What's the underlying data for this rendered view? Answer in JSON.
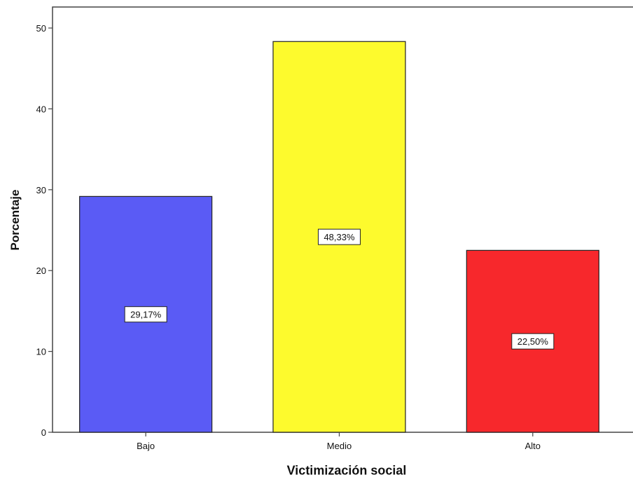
{
  "chart_data": {
    "type": "bar",
    "categories": [
      "Bajo",
      "Medio",
      "Alto"
    ],
    "values": [
      29.17,
      48.33,
      22.5
    ],
    "data_labels": [
      "29,17%",
      "48,33%",
      "22,50%"
    ],
    "colors": [
      "#5a5bf5",
      "#fdfa2d",
      "#f7282c"
    ],
    "xlabel": "Victimización social",
    "ylabel": "Porcentaje",
    "ylim": [
      0,
      50
    ],
    "yticks": [
      0,
      10,
      20,
      30,
      40,
      50
    ],
    "ytick_labels": [
      "0",
      "10",
      "20",
      "30",
      "40",
      "50"
    ],
    "grid": false
  }
}
